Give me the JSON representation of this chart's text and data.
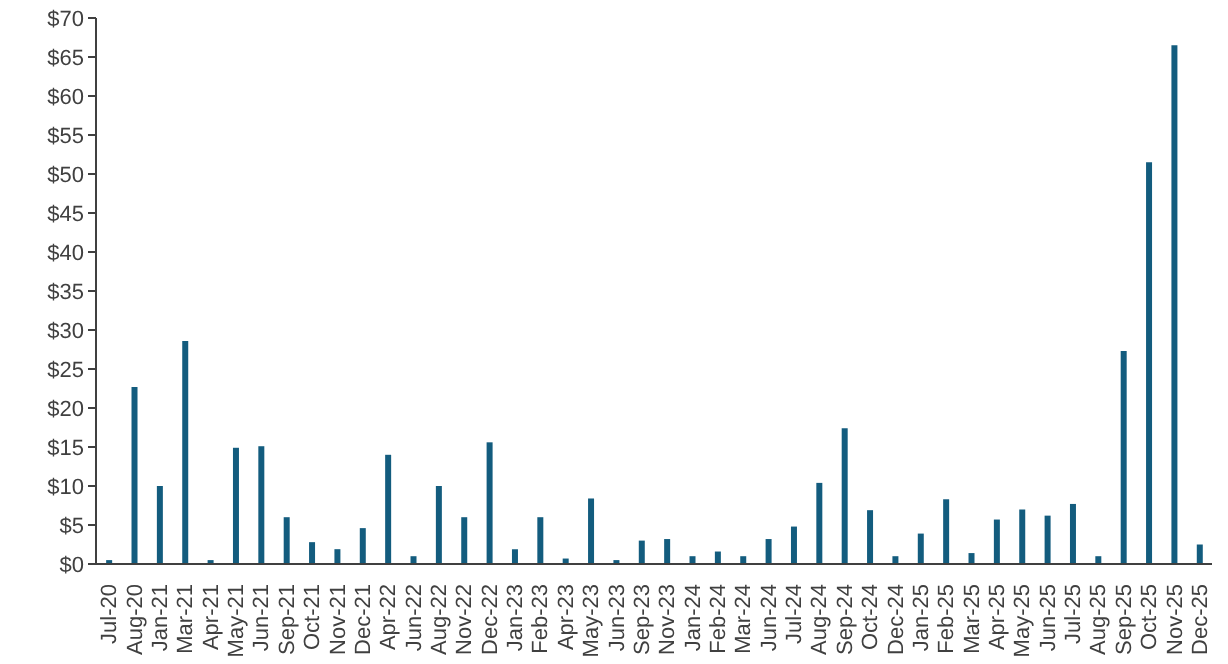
{
  "chart_data": {
    "type": "bar",
    "categories": [
      "Jul-20",
      "Aug-20",
      "Jan-21",
      "Mar-21",
      "Apr-21",
      "May-21",
      "Jun-21",
      "Sep-21",
      "Oct-21",
      "Nov-21",
      "Dec-21",
      "Apr-22",
      "Jun-22",
      "Aug-22",
      "Nov-22",
      "Dec-22",
      "Jan-23",
      "Feb-23",
      "Apr-23",
      "May-23",
      "Jun-23",
      "Sep-23",
      "Nov-23",
      "Jan-24",
      "Feb-24",
      "Mar-24",
      "Jun-24",
      "Jul-24",
      "Aug-24",
      "Sep-24",
      "Oct-24",
      "Dec-24",
      "Jan-25",
      "Feb-25",
      "Mar-25",
      "Apr-25",
      "May-25",
      "Jun-25",
      "Jul-25",
      "Aug-25",
      "Sep-25",
      "Oct-25",
      "Nov-25",
      "Dec-25"
    ],
    "values": [
      0.5,
      22.7,
      10,
      28.6,
      0.5,
      14.9,
      15.1,
      6,
      2.8,
      1.9,
      4.6,
      14,
      1,
      10,
      6,
      15.6,
      1.9,
      6,
      0.7,
      8.4,
      0.5,
      3,
      3.2,
      1,
      1.6,
      1,
      3.2,
      4.8,
      10.4,
      17.4,
      6.9,
      1,
      3.9,
      8.3,
      1.4,
      5.7,
      7,
      6.2,
      7.7,
      1,
      27.3,
      51.5,
      66.5,
      2.5
    ],
    "color": "#135c7e",
    "ylim": [
      0,
      70
    ],
    "yticks": [
      {
        "value": 0,
        "label": "$0"
      },
      {
        "value": 5,
        "label": "$5"
      },
      {
        "value": 10,
        "label": "$10"
      },
      {
        "value": 15,
        "label": "$15"
      },
      {
        "value": 20,
        "label": "$20"
      },
      {
        "value": 25,
        "label": "$25"
      },
      {
        "value": 30,
        "label": "$30"
      },
      {
        "value": 35,
        "label": "$35"
      },
      {
        "value": 40,
        "label": "$40"
      },
      {
        "value": 45,
        "label": "$45"
      },
      {
        "value": 50,
        "label": "$50"
      },
      {
        "value": 55,
        "label": "$55"
      },
      {
        "value": 60,
        "label": "$60"
      },
      {
        "value": 65,
        "label": "$65"
      },
      {
        "value": 70,
        "label": "$70"
      }
    ],
    "grid": false,
    "legend": false
  }
}
